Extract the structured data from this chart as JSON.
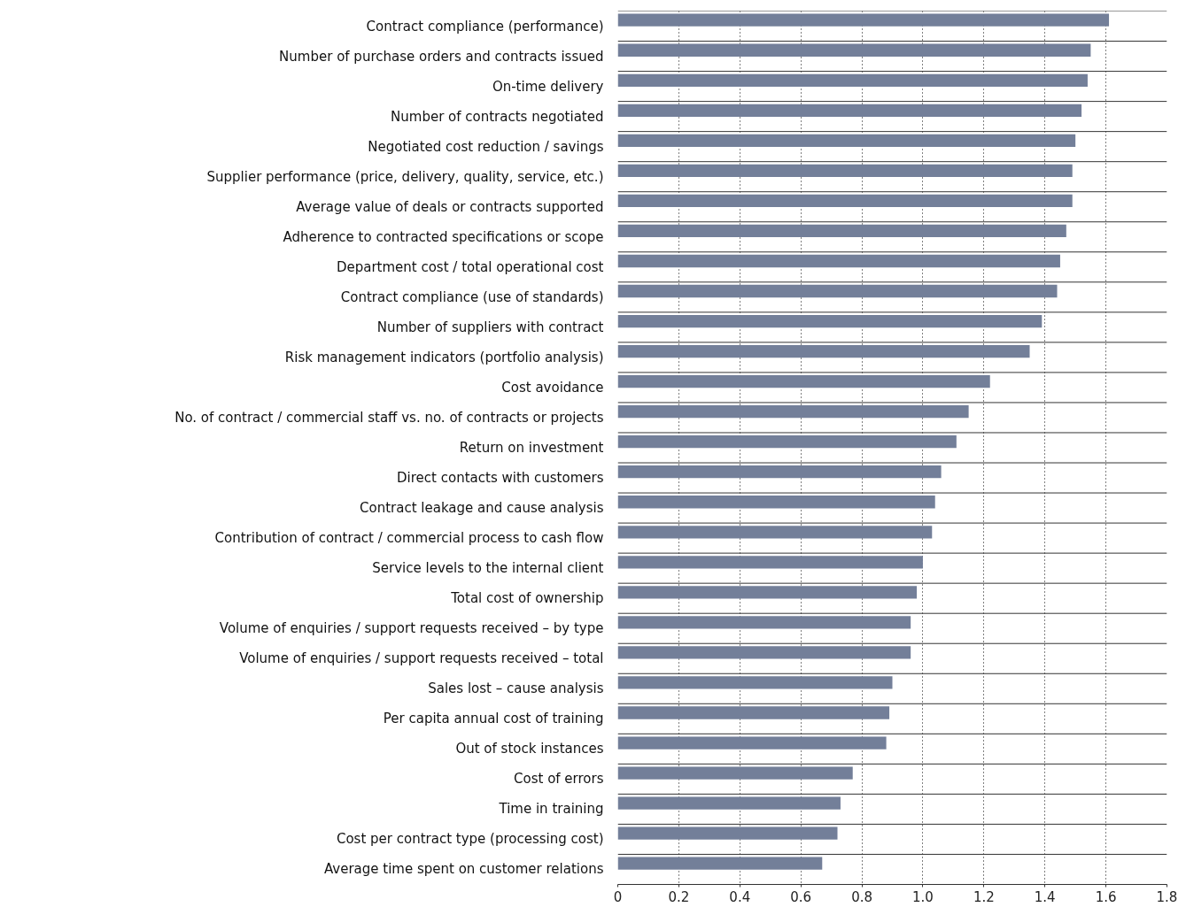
{
  "chart_data": {
    "type": "bar",
    "orientation": "horizontal",
    "categories": [
      "Contract compliance (performance)",
      "Number of purchase orders and contracts issued",
      "On-time delivery",
      "Number of contracts negotiated",
      "Negotiated cost reduction / savings",
      "Supplier performance (price, delivery, quality, service, etc.)",
      "Average value of deals or contracts supported",
      "Adherence to contracted specifications or scope",
      "Department cost / total operational cost",
      "Contract compliance (use of standards)",
      "Number of suppliers with contract",
      "Risk management indicators (portfolio analysis)",
      "Cost avoidance",
      "No. of contract / commercial staff vs. no. of contracts or projects",
      "Return on investment",
      "Direct contacts with customers",
      "Contract leakage and cause analysis",
      "Contribution of contract / commercial process to cash flow",
      "Service levels to the internal client",
      "Total cost of ownership",
      "Volume of enquiries / support requests received – by type",
      "Volume of enquiries / support requests received – total",
      "Sales lost – cause analysis",
      "Per capita annual cost of training",
      "Out of stock instances",
      "Cost of errors",
      "Time in training",
      "Cost per contract type (processing cost)",
      "Average time spent on customer relations"
    ],
    "values": [
      1.61,
      1.55,
      1.54,
      1.52,
      1.5,
      1.49,
      1.49,
      1.47,
      1.45,
      1.44,
      1.39,
      1.35,
      1.22,
      1.15,
      1.11,
      1.06,
      1.04,
      1.03,
      1.0,
      0.98,
      0.96,
      0.96,
      0.9,
      0.89,
      0.88,
      0.77,
      0.73,
      0.72,
      0.67
    ],
    "color": "#737f99",
    "xlim": [
      0,
      1.8
    ],
    "xticks": [
      {
        "value": 0,
        "label": "0"
      },
      {
        "value": 0.2,
        "label": "0.2"
      },
      {
        "value": 0.4,
        "label": "0.4"
      },
      {
        "value": 0.6,
        "label": "0.6"
      },
      {
        "value": 0.8,
        "label": "0.8"
      },
      {
        "value": 1,
        "label": "1.0"
      },
      {
        "value": 1.2,
        "label": "1.2"
      },
      {
        "value": 1.4,
        "label": "1.4"
      },
      {
        "value": 1.6,
        "label": "1.6"
      },
      {
        "value": 1.8,
        "label": "1.8"
      }
    ],
    "grid": "x"
  }
}
